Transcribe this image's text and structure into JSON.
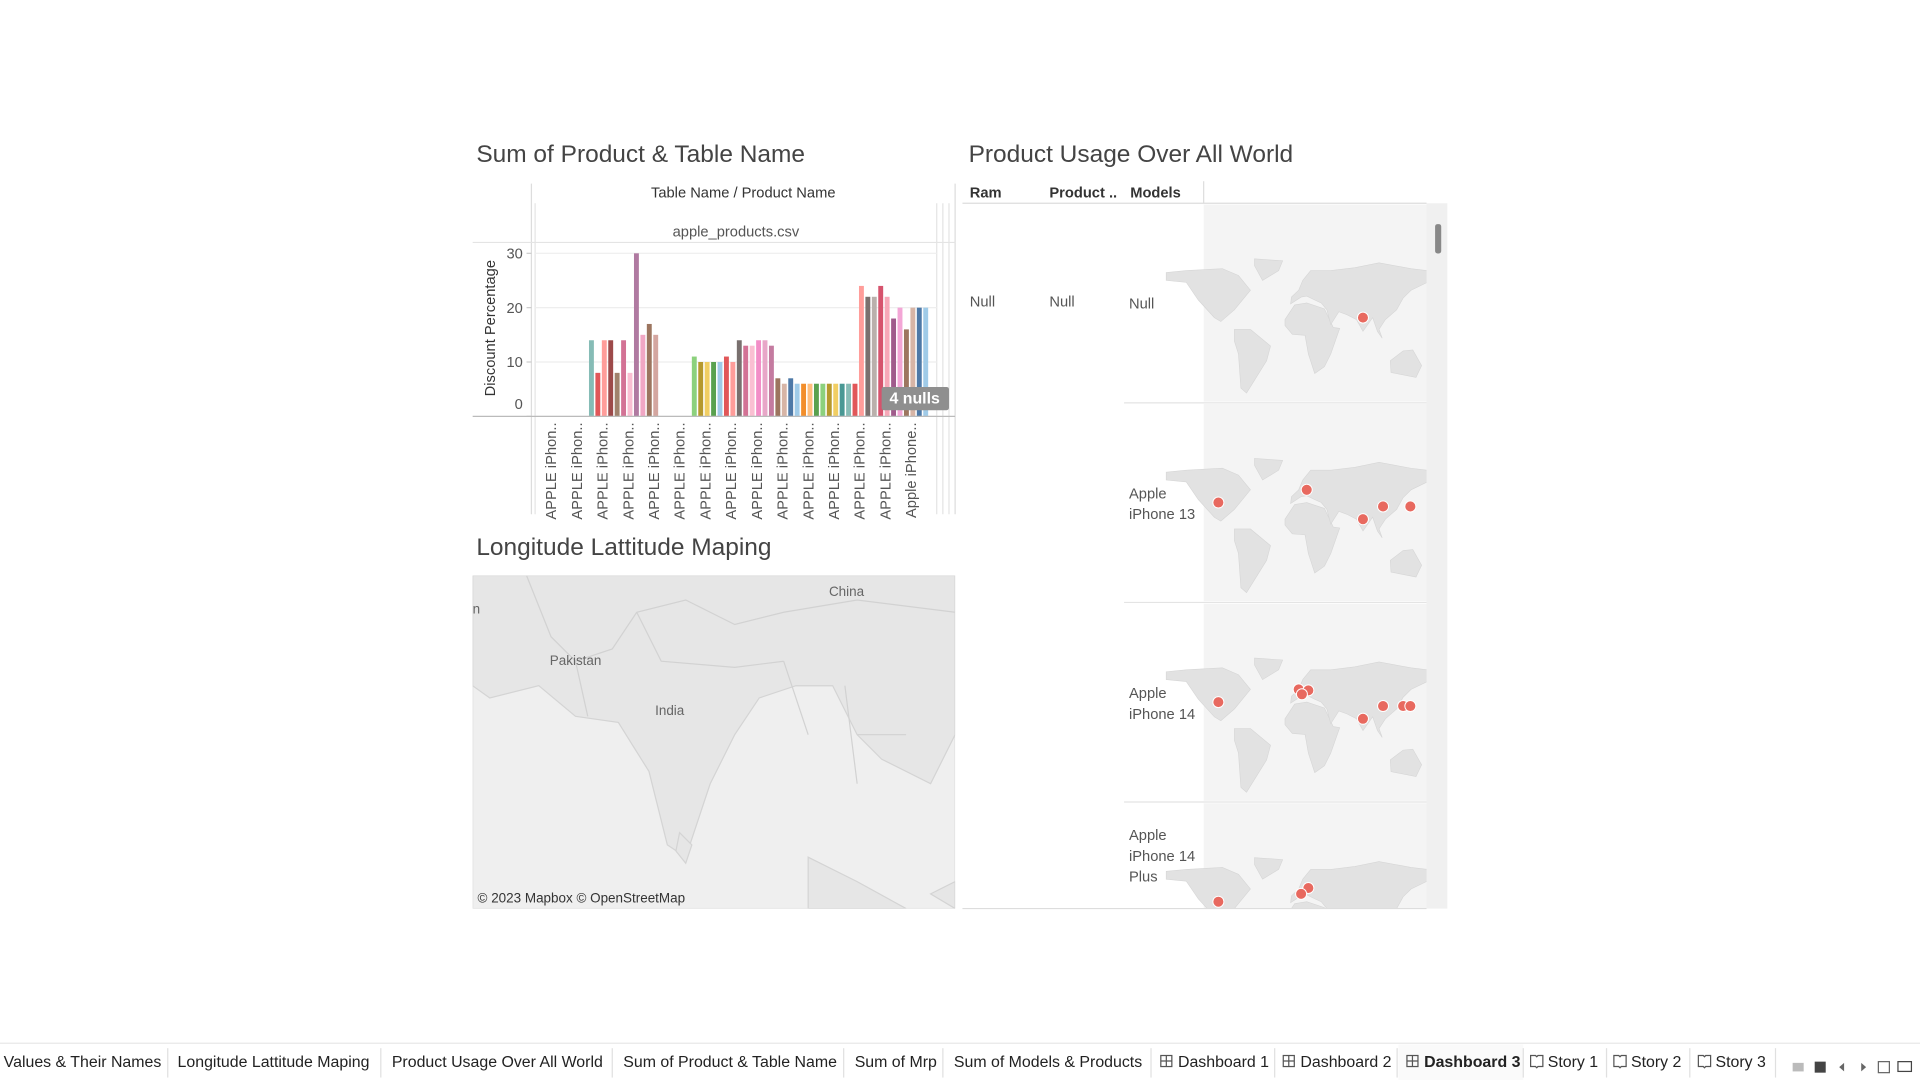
{
  "chart_data": {
    "type": "bar",
    "title": "Sum of Product & Table Name",
    "header": "Table Name  /  Product Name",
    "group_label": "apple_products.csv",
    "y_label": "Discount Percentage",
    "x_labels": [
      "APPLE iPhon..",
      "APPLE iPhon..",
      "APPLE iPhon..",
      "APPLE iPhon..",
      "APPLE iPhon..",
      "APPLE iPhon..",
      "APPLE iPhon..",
      "APPLE iPhon..",
      "APPLE iPhon..",
      "APPLE iPhon..",
      "APPLE iPhon..",
      "APPLE iPhon..",
      "APPLE iPhon..",
      "APPLE iPhon..",
      "Apple iPhone.."
    ],
    "values": [
      null,
      null,
      null,
      null,
      null,
      null,
      null,
      null,
      14,
      8,
      14,
      14,
      8,
      14,
      8,
      30,
      15,
      17,
      15,
      null,
      null,
      null,
      null,
      null,
      11,
      10,
      10,
      10,
      10,
      11,
      10,
      14,
      13,
      13,
      14,
      14,
      13,
      7,
      6,
      7,
      6,
      6,
      6,
      6,
      6,
      6,
      6,
      6,
      6,
      6,
      24,
      22,
      22,
      24,
      22,
      18,
      20,
      16,
      20,
      20,
      20
    ],
    "colors": [
      null,
      null,
      null,
      null,
      null,
      null,
      null,
      null,
      "#86bcb6",
      "#e15759",
      "#ff9d9a",
      "#9d4a4a",
      "#a0826d",
      "#d37295",
      "#fabfd2",
      "#b07aa1",
      "#f1a7c4",
      "#9c755f",
      "#d4a6a0",
      null,
      null,
      null,
      null,
      null,
      "#8cd17d",
      "#b6992d",
      "#f1ce63",
      "#59a14f",
      "#a0cbe8",
      "#e15759",
      "#ff9d9a",
      "#79706e",
      "#d37295",
      "#fabfd2",
      "#f28ec7",
      "#e8a7c8",
      "#c47ba0",
      "#9c755f",
      "#d7b5a6",
      "#4e79a7",
      "#a0cbe8",
      "#f28e2b",
      "#ffbe7d",
      "#59a14f",
      "#8cd17d",
      "#b6992d",
      "#f1ce63",
      "#499894",
      "#86bcb6",
      "#e15759",
      "#ff9d9a",
      "#79706e",
      "#bab0ac",
      "#d6536d",
      "#f7a8b8",
      "#a05b8c",
      "#f3a6d6",
      "#9d7660",
      "#d7b5a6",
      "#4e79a7",
      "#a0cbe8"
    ],
    "null_indicator": "4 nulls",
    "ylim": [
      0,
      32
    ],
    "yticks": [
      0,
      10,
      20,
      30
    ],
    "grid": true
  },
  "map_panel": {
    "title": "Longitude Lattitude Maping",
    "place_labels": [
      "China",
      "Pakistan",
      "India",
      "n"
    ],
    "attribution": "© 2023 Mapbox © OpenStreetMap"
  },
  "usage_panel": {
    "title": "Product Usage  Over All World",
    "columns": [
      "Ram",
      "Product ..",
      "Models"
    ],
    "rows": [
      {
        "ram": "Null",
        "product": "Null",
        "model": "Null",
        "lon": [
          80
        ],
        "lat": [
          22
        ]
      },
      {
        "model": "Apple iPhone 13",
        "lon": [
          -100,
          10,
          105,
          80,
          139
        ],
        "lat": [
          37,
          50,
          33,
          20,
          33
        ]
      },
      {
        "model": "Apple iPhone 14",
        "lon": [
          -100,
          0,
          12,
          4,
          105,
          80,
          130,
          139
        ],
        "lat": [
          37,
          50,
          49,
          45,
          33,
          20,
          33,
          33
        ]
      },
      {
        "model": "Apple iPhone 14 Plus",
        "lon": [
          -100,
          12,
          3
        ],
        "lat": [
          37,
          51,
          45
        ]
      }
    ]
  },
  "sheet_tabs": [
    {
      "label": "Values & Their Names",
      "kind": "sheet",
      "selected": false
    },
    {
      "label": "Longitude Lattitude Maping",
      "kind": "sheet",
      "selected": false
    },
    {
      "label": "Product Usage  Over All World",
      "kind": "sheet",
      "selected": false
    },
    {
      "label": "Sum of Product & Table Name",
      "kind": "sheet",
      "selected": false
    },
    {
      "label": "Sum of Mrp",
      "kind": "sheet",
      "selected": false
    },
    {
      "label": "Sum of Models & Products",
      "kind": "sheet",
      "selected": false
    },
    {
      "label": "Dashboard 1",
      "kind": "dashboard",
      "selected": false
    },
    {
      "label": "Dashboard 2",
      "kind": "dashboard",
      "selected": false
    },
    {
      "label": "Dashboard 3",
      "kind": "dashboard",
      "selected": true
    },
    {
      "label": "Story 1",
      "kind": "story",
      "selected": false
    },
    {
      "label": "Story 2",
      "kind": "story",
      "selected": false
    },
    {
      "label": "Story 3",
      "kind": "story",
      "selected": false
    }
  ]
}
